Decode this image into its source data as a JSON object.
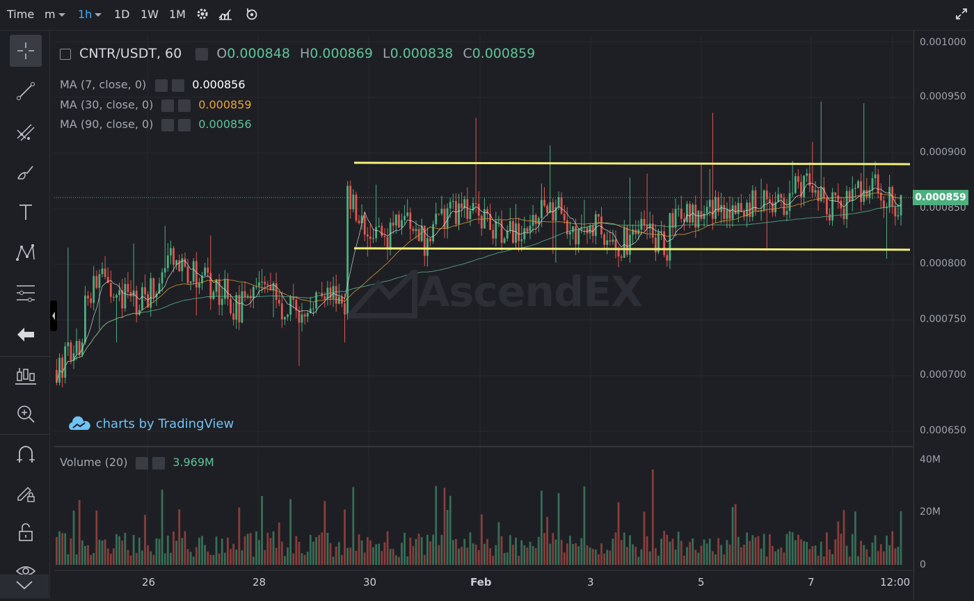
{
  "topbar": {
    "time_label": "Time",
    "intervals": [
      "m",
      "1h",
      "1D",
      "1W",
      "1M"
    ],
    "active_interval": "1h"
  },
  "legend": {
    "symbol": "CNTR/USDT, 60",
    "open_label": "O",
    "open": "0.000848",
    "high_label": "H",
    "high": "0.000869",
    "low_label": "L",
    "low": "0.000838",
    "close_label": "C",
    "close": "0.000859",
    "ma": [
      {
        "label": "MA (7, close, 0)",
        "value": "0.000856",
        "color": "#ffffff"
      },
      {
        "label": "MA (30, close, 0)",
        "value": "0.000859",
        "color": "#e8a33d"
      },
      {
        "label": "MA (90, close, 0)",
        "value": "0.000856",
        "color": "#5fc49a"
      }
    ],
    "volume_label": "Volume (20)",
    "volume_value": "3.969M"
  },
  "price_axis": [
    "0.001000",
    "0.000950",
    "0.000900",
    "0.000850",
    "0.000800",
    "0.000750",
    "0.000700",
    "0.000650"
  ],
  "current_price": "0.000859",
  "volume_axis": [
    "40M",
    "20M",
    "0"
  ],
  "time_axis": [
    "26",
    "28",
    "30",
    "Feb",
    "3",
    "5",
    "7",
    "12:00"
  ],
  "tradingview_credit": "charts by TradingView",
  "watermark": "AscendEX",
  "colors": {
    "up": "#4caf7f",
    "down": "#e0574f",
    "channel": "#f3f07a",
    "bg": "#1e1f24"
  }
}
